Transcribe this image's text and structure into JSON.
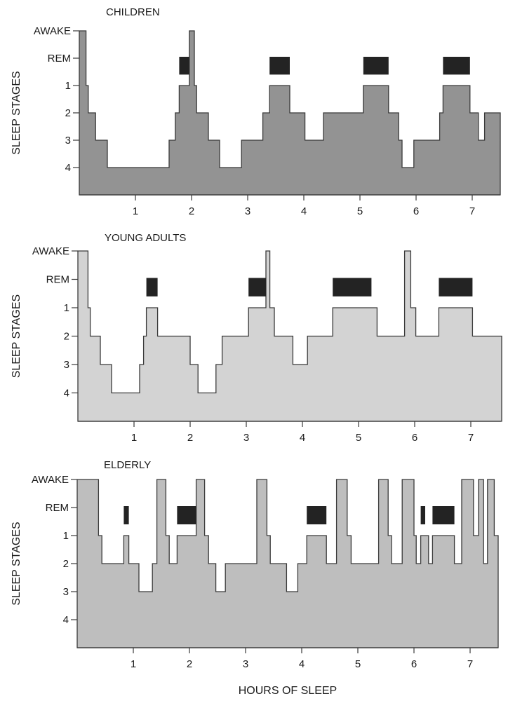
{
  "figure": {
    "xlabel": "HOURS OF SLEEP"
  },
  "colors": {
    "children_fill": "#939393",
    "young_adults_fill": "#d3d3d3",
    "elderly_fill": "#bebebe",
    "rem_bar": "#232323",
    "outline": "#3a3a3a"
  },
  "chart_data": [
    {
      "type": "area",
      "subtype": "step-hypnogram",
      "title": "CHILDREN",
      "ylabel": "SLEEP STAGES",
      "xlabel": "",
      "y_tick_labels": [
        "AWAKE",
        "REM",
        "1",
        "2",
        "3",
        "4"
      ],
      "y_levels": {
        "AWAKE": 0,
        "REM": 1,
        "1": 2,
        "2": 3,
        "3": 4,
        "4": 5
      },
      "x_tick_labels": [
        "1",
        "2",
        "3",
        "4",
        "5",
        "6",
        "7"
      ],
      "xlim": [
        0,
        7.5
      ],
      "ylim": [
        0,
        6
      ],
      "segments": [
        [
          0.0,
          0.12,
          "AWAKE"
        ],
        [
          0.12,
          0.16,
          "1"
        ],
        [
          0.16,
          0.29,
          "2"
        ],
        [
          0.29,
          0.5,
          "3"
        ],
        [
          0.5,
          1.6,
          "4"
        ],
        [
          1.6,
          1.71,
          "3"
        ],
        [
          1.71,
          1.78,
          "2"
        ],
        [
          1.78,
          1.96,
          "1"
        ],
        [
          1.96,
          2.05,
          "AWAKE"
        ],
        [
          2.05,
          2.09,
          "1"
        ],
        [
          2.09,
          2.3,
          "2"
        ],
        [
          2.3,
          2.5,
          "3"
        ],
        [
          2.5,
          2.89,
          "4"
        ],
        [
          2.89,
          3.27,
          "3"
        ],
        [
          3.27,
          3.39,
          "2"
        ],
        [
          3.39,
          3.75,
          "1"
        ],
        [
          3.75,
          4.02,
          "2"
        ],
        [
          4.02,
          4.35,
          "3"
        ],
        [
          4.35,
          5.06,
          "2"
        ],
        [
          5.06,
          5.51,
          "1"
        ],
        [
          5.51,
          5.69,
          "2"
        ],
        [
          5.69,
          5.75,
          "3"
        ],
        [
          5.75,
          5.96,
          "4"
        ],
        [
          5.96,
          6.42,
          "3"
        ],
        [
          6.42,
          6.48,
          "2"
        ],
        [
          6.48,
          6.96,
          "1"
        ],
        [
          6.96,
          7.11,
          "2"
        ],
        [
          7.11,
          7.22,
          "3"
        ],
        [
          7.22,
          7.5,
          "2"
        ]
      ],
      "rem_periods": [
        [
          1.78,
          1.96
        ],
        [
          3.39,
          3.75
        ],
        [
          5.06,
          5.51
        ],
        [
          6.48,
          6.96
        ]
      ]
    },
    {
      "type": "area",
      "subtype": "step-hypnogram",
      "title": "YOUNG ADULTS",
      "ylabel": "SLEEP STAGES",
      "xlabel": "",
      "y_tick_labels": [
        "AWAKE",
        "REM",
        "1",
        "2",
        "3",
        "4"
      ],
      "y_levels": {
        "AWAKE": 0,
        "REM": 1,
        "1": 2,
        "2": 3,
        "3": 4,
        "4": 5
      },
      "x_tick_labels": [
        "1",
        "2",
        "3",
        "4",
        "5",
        "6",
        "7"
      ],
      "xlim": [
        0,
        7.5
      ],
      "ylim": [
        0,
        6
      ],
      "segments": [
        [
          0.0,
          0.18,
          "AWAKE"
        ],
        [
          0.18,
          0.22,
          "1"
        ],
        [
          0.22,
          0.4,
          "2"
        ],
        [
          0.4,
          0.6,
          "3"
        ],
        [
          0.6,
          1.1,
          "4"
        ],
        [
          1.1,
          1.17,
          "3"
        ],
        [
          1.17,
          1.22,
          "2"
        ],
        [
          1.22,
          1.42,
          "1"
        ],
        [
          1.42,
          2.0,
          "2"
        ],
        [
          2.0,
          2.14,
          "3"
        ],
        [
          2.14,
          2.46,
          "4"
        ],
        [
          2.46,
          2.57,
          "3"
        ],
        [
          2.57,
          3.04,
          "2"
        ],
        [
          3.04,
          3.35,
          "1"
        ],
        [
          3.35,
          3.42,
          "AWAKE"
        ],
        [
          3.42,
          3.5,
          "1"
        ],
        [
          3.5,
          3.83,
          "2"
        ],
        [
          3.83,
          4.09,
          "3"
        ],
        [
          4.09,
          4.54,
          "2"
        ],
        [
          4.54,
          5.23,
          "1"
        ],
        [
          5.23,
          5.33,
          "1"
        ],
        [
          5.33,
          5.82,
          "2"
        ],
        [
          5.82,
          5.93,
          "AWAKE"
        ],
        [
          5.93,
          6.02,
          "1"
        ],
        [
          6.02,
          6.43,
          "2"
        ],
        [
          6.43,
          7.03,
          "1"
        ],
        [
          7.03,
          7.55,
          "2"
        ]
      ],
      "rem_periods": [
        [
          1.22,
          1.42
        ],
        [
          3.04,
          3.35
        ],
        [
          4.54,
          5.23
        ],
        [
          6.43,
          7.03
        ]
      ]
    },
    {
      "type": "area",
      "subtype": "step-hypnogram",
      "title": "ELDERLY",
      "ylabel": "SLEEP STAGES",
      "xlabel": "HOURS OF SLEEP",
      "y_tick_labels": [
        "AWAKE",
        "REM",
        "1",
        "2",
        "3",
        "4"
      ],
      "y_levels": {
        "AWAKE": 0,
        "REM": 1,
        "1": 2,
        "2": 3,
        "3": 4,
        "4": 5
      },
      "x_tick_labels": [
        "1",
        "2",
        "3",
        "4",
        "5",
        "6",
        "7"
      ],
      "xlim": [
        0,
        7.5
      ],
      "ylim": [
        0,
        6
      ],
      "segments": [
        [
          0.0,
          0.38,
          "AWAKE"
        ],
        [
          0.38,
          0.44,
          "1"
        ],
        [
          0.44,
          0.83,
          "2"
        ],
        [
          0.83,
          0.92,
          "1"
        ],
        [
          0.92,
          1.1,
          "2"
        ],
        [
          1.1,
          1.34,
          "3"
        ],
        [
          1.34,
          1.42,
          "2"
        ],
        [
          1.42,
          1.58,
          "AWAKE"
        ],
        [
          1.58,
          1.64,
          "1"
        ],
        [
          1.64,
          1.78,
          "2"
        ],
        [
          1.78,
          2.12,
          "1"
        ],
        [
          2.12,
          2.27,
          "AWAKE"
        ],
        [
          2.27,
          2.34,
          "1"
        ],
        [
          2.34,
          2.47,
          "2"
        ],
        [
          2.47,
          2.64,
          "3"
        ],
        [
          2.64,
          3.2,
          "2"
        ],
        [
          3.2,
          3.38,
          "AWAKE"
        ],
        [
          3.38,
          3.44,
          "1"
        ],
        [
          3.44,
          3.73,
          "2"
        ],
        [
          3.73,
          3.93,
          "3"
        ],
        [
          3.93,
          4.09,
          "2"
        ],
        [
          4.09,
          4.44,
          "1"
        ],
        [
          4.44,
          4.62,
          "2"
        ],
        [
          4.62,
          4.81,
          "AWAKE"
        ],
        [
          4.81,
          4.88,
          "1"
        ],
        [
          4.88,
          5.37,
          "2"
        ],
        [
          5.37,
          5.54,
          "AWAKE"
        ],
        [
          5.54,
          5.6,
          "1"
        ],
        [
          5.6,
          5.79,
          "2"
        ],
        [
          5.79,
          6.0,
          "AWAKE"
        ],
        [
          6.0,
          6.04,
          "1"
        ],
        [
          6.04,
          6.12,
          "2"
        ],
        [
          6.12,
          6.2,
          "1"
        ],
        [
          6.2,
          6.26,
          "1"
        ],
        [
          6.26,
          6.33,
          "2"
        ],
        [
          6.33,
          6.72,
          "1"
        ],
        [
          6.72,
          6.85,
          "2"
        ],
        [
          6.85,
          7.06,
          "AWAKE"
        ],
        [
          7.06,
          7.15,
          "1"
        ],
        [
          7.15,
          7.24,
          "AWAKE"
        ],
        [
          7.24,
          7.31,
          "2"
        ],
        [
          7.31,
          7.43,
          "AWAKE"
        ],
        [
          7.43,
          7.5,
          "1"
        ]
      ],
      "rem_periods": [
        [
          0.83,
          0.92
        ],
        [
          1.78,
          2.12
        ],
        [
          4.09,
          4.44
        ],
        [
          6.12,
          6.2
        ],
        [
          6.33,
          6.72
        ]
      ]
    }
  ]
}
